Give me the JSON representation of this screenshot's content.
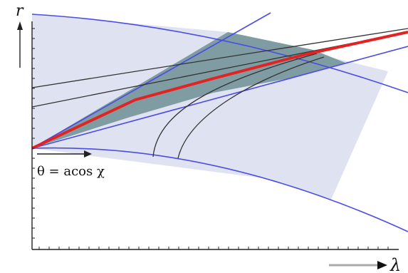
{
  "labels": {
    "vertical_axis": "r",
    "horizontal_axis": "λ",
    "angle_annotation": "θ = acos χ"
  },
  "colors": {
    "outer_band_fill": "#dfe3f1",
    "cone_fill": "#7f9ca3",
    "band_boundary": "#4b4be6",
    "thick_path": "#e32222",
    "thin_curves": "#333333",
    "axes": "#222222",
    "lambda_arrow": "#aaaaaa"
  }
}
